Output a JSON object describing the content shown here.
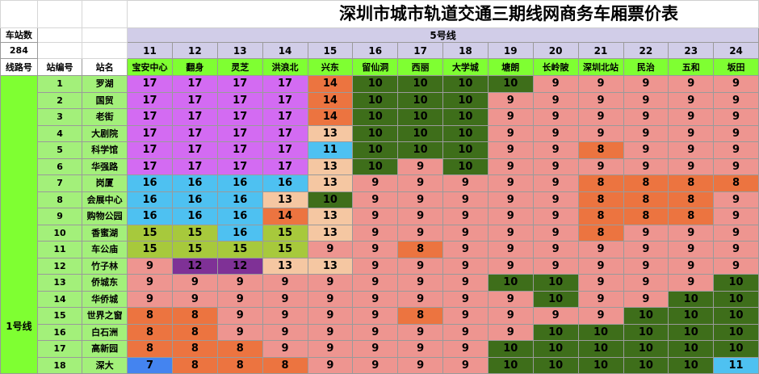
{
  "title": "深圳市城市轨道交通三期线网商务车厢票价表",
  "corner": {
    "station_count_label": "车站数",
    "station_count_value": "284",
    "line_no_label": "线路号",
    "station_no_label": "站编号",
    "station_name_label": "站名"
  },
  "line5_label": "5号线",
  "line1_label": "1号线",
  "columns": [
    {
      "no": "11",
      "name": "宝安中心"
    },
    {
      "no": "12",
      "name": "翻身"
    },
    {
      "no": "13",
      "name": "灵芝"
    },
    {
      "no": "14",
      "name": "洪浪北"
    },
    {
      "no": "15",
      "name": "兴东"
    },
    {
      "no": "16",
      "name": "留仙洞"
    },
    {
      "no": "17",
      "name": "西丽"
    },
    {
      "no": "18",
      "name": "大学城"
    },
    {
      "no": "19",
      "name": "塘朗"
    },
    {
      "no": "20",
      "name": "长岭陂"
    },
    {
      "no": "21",
      "name": "深圳北站"
    },
    {
      "no": "22",
      "name": "民治"
    },
    {
      "no": "23",
      "name": "五和"
    },
    {
      "no": "24",
      "name": "坂田"
    }
  ],
  "colors": {
    "lilac": "#d36bf2",
    "orange": "#ec7440",
    "dkgreen": "#3e6e1a",
    "pink": "#ee9590",
    "peach": "#f5c7a2",
    "sky": "#4ec1f1",
    "olive": "#a7c93c",
    "purple": "#7f3196",
    "blue": "#4484f0",
    "header_lavender": "#d1cde8",
    "station_green": "#7fff32"
  },
  "rows": [
    {
      "no": "1",
      "name": "罗湖",
      "prices": [
        "17",
        "17",
        "17",
        "17",
        "14",
        "10",
        "10",
        "10",
        "10",
        "9",
        "9",
        "9",
        "9",
        "9"
      ],
      "colors": [
        "lilac",
        "lilac",
        "lilac",
        "lilac",
        "orange",
        "dkgreen",
        "dkgreen",
        "dkgreen",
        "dkgreen",
        "pink",
        "pink",
        "pink",
        "pink",
        "pink"
      ]
    },
    {
      "no": "2",
      "name": "国贸",
      "prices": [
        "17",
        "17",
        "17",
        "17",
        "14",
        "10",
        "10",
        "10",
        "9",
        "9",
        "9",
        "9",
        "9",
        "9"
      ],
      "colors": [
        "lilac",
        "lilac",
        "lilac",
        "lilac",
        "orange",
        "dkgreen",
        "dkgreen",
        "dkgreen",
        "pink",
        "pink",
        "pink",
        "pink",
        "pink",
        "pink"
      ]
    },
    {
      "no": "3",
      "name": "老街",
      "prices": [
        "17",
        "17",
        "17",
        "17",
        "14",
        "10",
        "10",
        "10",
        "9",
        "9",
        "9",
        "9",
        "9",
        "9"
      ],
      "colors": [
        "lilac",
        "lilac",
        "lilac",
        "lilac",
        "orange",
        "dkgreen",
        "dkgreen",
        "dkgreen",
        "pink",
        "pink",
        "pink",
        "pink",
        "pink",
        "pink"
      ]
    },
    {
      "no": "4",
      "name": "大剧院",
      "prices": [
        "17",
        "17",
        "17",
        "17",
        "13",
        "10",
        "10",
        "10",
        "9",
        "9",
        "9",
        "9",
        "9",
        "9"
      ],
      "colors": [
        "lilac",
        "lilac",
        "lilac",
        "lilac",
        "peach",
        "dkgreen",
        "dkgreen",
        "dkgreen",
        "pink",
        "pink",
        "pink",
        "pink",
        "pink",
        "pink"
      ]
    },
    {
      "no": "5",
      "name": "科学馆",
      "prices": [
        "17",
        "17",
        "17",
        "17",
        "11",
        "10",
        "10",
        "10",
        "9",
        "9",
        "8",
        "9",
        "9",
        "9"
      ],
      "colors": [
        "lilac",
        "lilac",
        "lilac",
        "lilac",
        "sky",
        "dkgreen",
        "dkgreen",
        "dkgreen",
        "pink",
        "pink",
        "orange",
        "pink",
        "pink",
        "pink"
      ]
    },
    {
      "no": "6",
      "name": "华强路",
      "prices": [
        "17",
        "17",
        "17",
        "17",
        "13",
        "10",
        "9",
        "10",
        "9",
        "9",
        "9",
        "9",
        "9",
        "9"
      ],
      "colors": [
        "lilac",
        "lilac",
        "lilac",
        "lilac",
        "peach",
        "dkgreen",
        "pink",
        "dkgreen",
        "pink",
        "pink",
        "pink",
        "pink",
        "pink",
        "pink"
      ]
    },
    {
      "no": "7",
      "name": "岗厦",
      "prices": [
        "16",
        "16",
        "16",
        "16",
        "13",
        "9",
        "9",
        "9",
        "9",
        "9",
        "8",
        "8",
        "8",
        "8"
      ],
      "colors": [
        "sky",
        "sky",
        "sky",
        "sky",
        "peach",
        "pink",
        "pink",
        "pink",
        "pink",
        "pink",
        "orange",
        "orange",
        "orange",
        "orange"
      ]
    },
    {
      "no": "8",
      "name": "会展中心",
      "prices": [
        "16",
        "16",
        "16",
        "13",
        "10",
        "9",
        "9",
        "9",
        "9",
        "9",
        "8",
        "8",
        "8",
        "9"
      ],
      "colors": [
        "sky",
        "sky",
        "sky",
        "peach",
        "dkgreen",
        "pink",
        "pink",
        "pink",
        "pink",
        "pink",
        "orange",
        "orange",
        "orange",
        "pink"
      ]
    },
    {
      "no": "9",
      "name": "购物公园",
      "prices": [
        "16",
        "16",
        "16",
        "14",
        "13",
        "9",
        "9",
        "9",
        "9",
        "9",
        "8",
        "8",
        "8",
        "9"
      ],
      "colors": [
        "sky",
        "sky",
        "sky",
        "orange",
        "peach",
        "pink",
        "pink",
        "pink",
        "pink",
        "pink",
        "orange",
        "orange",
        "orange",
        "pink"
      ]
    },
    {
      "no": "10",
      "name": "香蜜湖",
      "prices": [
        "15",
        "15",
        "16",
        "15",
        "13",
        "9",
        "9",
        "9",
        "9",
        "9",
        "8",
        "9",
        "9",
        "9"
      ],
      "colors": [
        "olive",
        "olive",
        "sky",
        "olive",
        "peach",
        "pink",
        "pink",
        "pink",
        "pink",
        "pink",
        "orange",
        "pink",
        "pink",
        "pink"
      ]
    },
    {
      "no": "11",
      "name": "车公庙",
      "prices": [
        "15",
        "15",
        "15",
        "15",
        "9",
        "9",
        "8",
        "9",
        "9",
        "9",
        "9",
        "9",
        "9",
        "9"
      ],
      "colors": [
        "olive",
        "olive",
        "olive",
        "olive",
        "pink",
        "pink",
        "orange",
        "pink",
        "pink",
        "pink",
        "pink",
        "pink",
        "pink",
        "pink"
      ]
    },
    {
      "no": "12",
      "name": "竹子林",
      "prices": [
        "9",
        "12",
        "12",
        "13",
        "13",
        "9",
        "9",
        "9",
        "9",
        "9",
        "9",
        "9",
        "9",
        "9"
      ],
      "colors": [
        "pink",
        "purple",
        "purple",
        "peach",
        "peach",
        "pink",
        "pink",
        "pink",
        "pink",
        "pink",
        "pink",
        "pink",
        "pink",
        "pink"
      ]
    },
    {
      "no": "13",
      "name": "侨城东",
      "prices": [
        "9",
        "9",
        "9",
        "9",
        "9",
        "9",
        "9",
        "9",
        "10",
        "10",
        "9",
        "9",
        "9",
        "10"
      ],
      "colors": [
        "pink",
        "pink",
        "pink",
        "pink",
        "pink",
        "pink",
        "pink",
        "pink",
        "dkgreen",
        "dkgreen",
        "pink",
        "pink",
        "pink",
        "dkgreen"
      ]
    },
    {
      "no": "14",
      "name": "华侨城",
      "prices": [
        "9",
        "9",
        "9",
        "9",
        "9",
        "9",
        "9",
        "9",
        "9",
        "10",
        "9",
        "9",
        "10",
        "10"
      ],
      "colors": [
        "pink",
        "pink",
        "pink",
        "pink",
        "pink",
        "pink",
        "pink",
        "pink",
        "pink",
        "dkgreen",
        "pink",
        "pink",
        "dkgreen",
        "dkgreen"
      ]
    },
    {
      "no": "15",
      "name": "世界之窗",
      "prices": [
        "8",
        "8",
        "9",
        "9",
        "9",
        "9",
        "8",
        "9",
        "9",
        "9",
        "9",
        "10",
        "10",
        "10"
      ],
      "colors": [
        "orange",
        "orange",
        "pink",
        "pink",
        "pink",
        "pink",
        "orange",
        "pink",
        "pink",
        "pink",
        "pink",
        "dkgreen",
        "dkgreen",
        "dkgreen"
      ]
    },
    {
      "no": "16",
      "name": "白石洲",
      "prices": [
        "8",
        "8",
        "9",
        "9",
        "9",
        "9",
        "9",
        "9",
        "9",
        "10",
        "10",
        "10",
        "10",
        "10"
      ],
      "colors": [
        "orange",
        "orange",
        "pink",
        "pink",
        "pink",
        "pink",
        "pink",
        "pink",
        "pink",
        "dkgreen",
        "dkgreen",
        "dkgreen",
        "dkgreen",
        "dkgreen"
      ]
    },
    {
      "no": "17",
      "name": "高新园",
      "prices": [
        "8",
        "8",
        "8",
        "9",
        "9",
        "9",
        "9",
        "9",
        "10",
        "10",
        "10",
        "10",
        "10",
        "10"
      ],
      "colors": [
        "orange",
        "orange",
        "orange",
        "pink",
        "pink",
        "pink",
        "pink",
        "pink",
        "dkgreen",
        "dkgreen",
        "dkgreen",
        "dkgreen",
        "dkgreen",
        "dkgreen"
      ]
    },
    {
      "no": "18",
      "name": "深大",
      "prices": [
        "7",
        "8",
        "8",
        "8",
        "9",
        "9",
        "9",
        "9",
        "10",
        "10",
        "10",
        "10",
        "10",
        "11"
      ],
      "colors": [
        "blue",
        "orange",
        "orange",
        "orange",
        "pink",
        "pink",
        "pink",
        "pink",
        "dkgreen",
        "dkgreen",
        "dkgreen",
        "dkgreen",
        "dkgreen",
        "sky"
      ]
    }
  ]
}
